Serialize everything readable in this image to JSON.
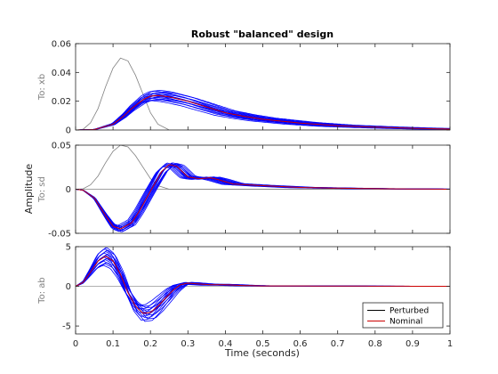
{
  "chart_data": {
    "type": "line",
    "title": "Robust \"balanced\" design",
    "xlabel": "Time (seconds)",
    "ylabel": "Amplitude",
    "xlim": [
      0,
      1
    ],
    "x_ticks": [
      "0",
      "0.1",
      "0.2",
      "0.3",
      "0.4",
      "0.5",
      "0.6",
      "0.7",
      "0.8",
      "0.9",
      "1"
    ],
    "legend": {
      "placement": "bottom-right",
      "entries": [
        "Perturbed",
        "Nominal"
      ]
    },
    "colors": {
      "perturbed": "#0000ff",
      "nominal": "#cc0000",
      "reference": "#808080",
      "axis": "#262626",
      "legend_line": "#000000"
    },
    "panels": [
      {
        "name": "To: xb",
        "ylim": [
          0,
          0.06
        ],
        "y_ticks": [
          "0",
          "0.02",
          "0.04",
          "0.06"
        ],
        "reference": {
          "x": [
            0,
            0.02,
            0.04,
            0.06,
            0.08,
            0.1,
            0.12,
            0.14,
            0.16,
            0.18,
            0.2,
            0.22,
            0.25,
            0.3,
            0.4,
            0.5,
            0.6,
            0.7,
            0.8,
            0.9,
            1.0
          ],
          "y": [
            0,
            0.0005,
            0.005,
            0.015,
            0.03,
            0.043,
            0.05,
            0.048,
            0.038,
            0.025,
            0.012,
            0.004,
            0,
            0,
            0,
            0,
            0,
            0,
            0,
            0,
            0
          ]
        },
        "nominal": {
          "x": [
            0,
            0.05,
            0.1,
            0.13,
            0.15,
            0.18,
            0.2,
            0.22,
            0.25,
            0.3,
            0.35,
            0.4,
            0.45,
            0.5,
            0.6,
            0.7,
            0.8,
            0.9,
            1.0
          ],
          "y": [
            0,
            0.0003,
            0.004,
            0.01,
            0.015,
            0.021,
            0.0235,
            0.024,
            0.023,
            0.02,
            0.016,
            0.012,
            0.0095,
            0.0075,
            0.0048,
            0.003,
            0.002,
            0.0012,
            0.0006
          ]
        },
        "perturbed_spread": 0.15
      },
      {
        "name": "To: sd",
        "ylim": [
          -0.05,
          0.05
        ],
        "y_ticks": [
          "-0.05",
          "0",
          "0.05"
        ],
        "reference": {
          "x": [
            0,
            0.02,
            0.04,
            0.06,
            0.08,
            0.1,
            0.12,
            0.14,
            0.16,
            0.18,
            0.2,
            0.22,
            0.25,
            0.3,
            0.4,
            0.5,
            0.6,
            0.7,
            0.8,
            0.9,
            1.0
          ],
          "y": [
            0,
            0.0005,
            0.005,
            0.015,
            0.03,
            0.043,
            0.05,
            0.048,
            0.038,
            0.025,
            0.012,
            0.004,
            0,
            0,
            0,
            0,
            0,
            0,
            0,
            0,
            0
          ]
        },
        "nominal": {
          "x": [
            0,
            0.02,
            0.05,
            0.08,
            0.1,
            0.12,
            0.15,
            0.17,
            0.2,
            0.23,
            0.25,
            0.27,
            0.3,
            0.33,
            0.36,
            0.38,
            0.42,
            0.46,
            0.5,
            0.6,
            0.7,
            0.8,
            0.9,
            1.0
          ],
          "y": [
            0,
            -0.001,
            -0.01,
            -0.03,
            -0.042,
            -0.045,
            -0.038,
            -0.025,
            -0.002,
            0.02,
            0.028,
            0.026,
            0.014,
            0.012,
            0.013,
            0.011,
            0.006,
            0.005,
            0.004,
            0.002,
            0.0012,
            0.0006,
            0.0003,
            0
          ]
        },
        "perturbed_spread": 0.08
      },
      {
        "name": "To: ab",
        "ylim": [
          -6,
          5
        ],
        "y_ticks": [
          "-5",
          "0",
          "5"
        ],
        "nominal": {
          "x": [
            0,
            0.02,
            0.04,
            0.06,
            0.08,
            0.1,
            0.12,
            0.14,
            0.16,
            0.18,
            0.2,
            0.22,
            0.24,
            0.26,
            0.28,
            0.3,
            0.33,
            0.36,
            0.4,
            0.45,
            0.5,
            0.6,
            0.7,
            0.8,
            0.9,
            1.0
          ],
          "y": [
            0,
            0.5,
            1.8,
            3.2,
            3.8,
            3.2,
            1.5,
            -0.8,
            -2.5,
            -3.4,
            -3.3,
            -2.5,
            -1.5,
            -0.5,
            0.2,
            0.4,
            0.3,
            0.2,
            0.2,
            0.1,
            0.05,
            0.05,
            0.03,
            0.02,
            0.01,
            0
          ]
        },
        "perturbed_spread": 0.3
      }
    ]
  }
}
